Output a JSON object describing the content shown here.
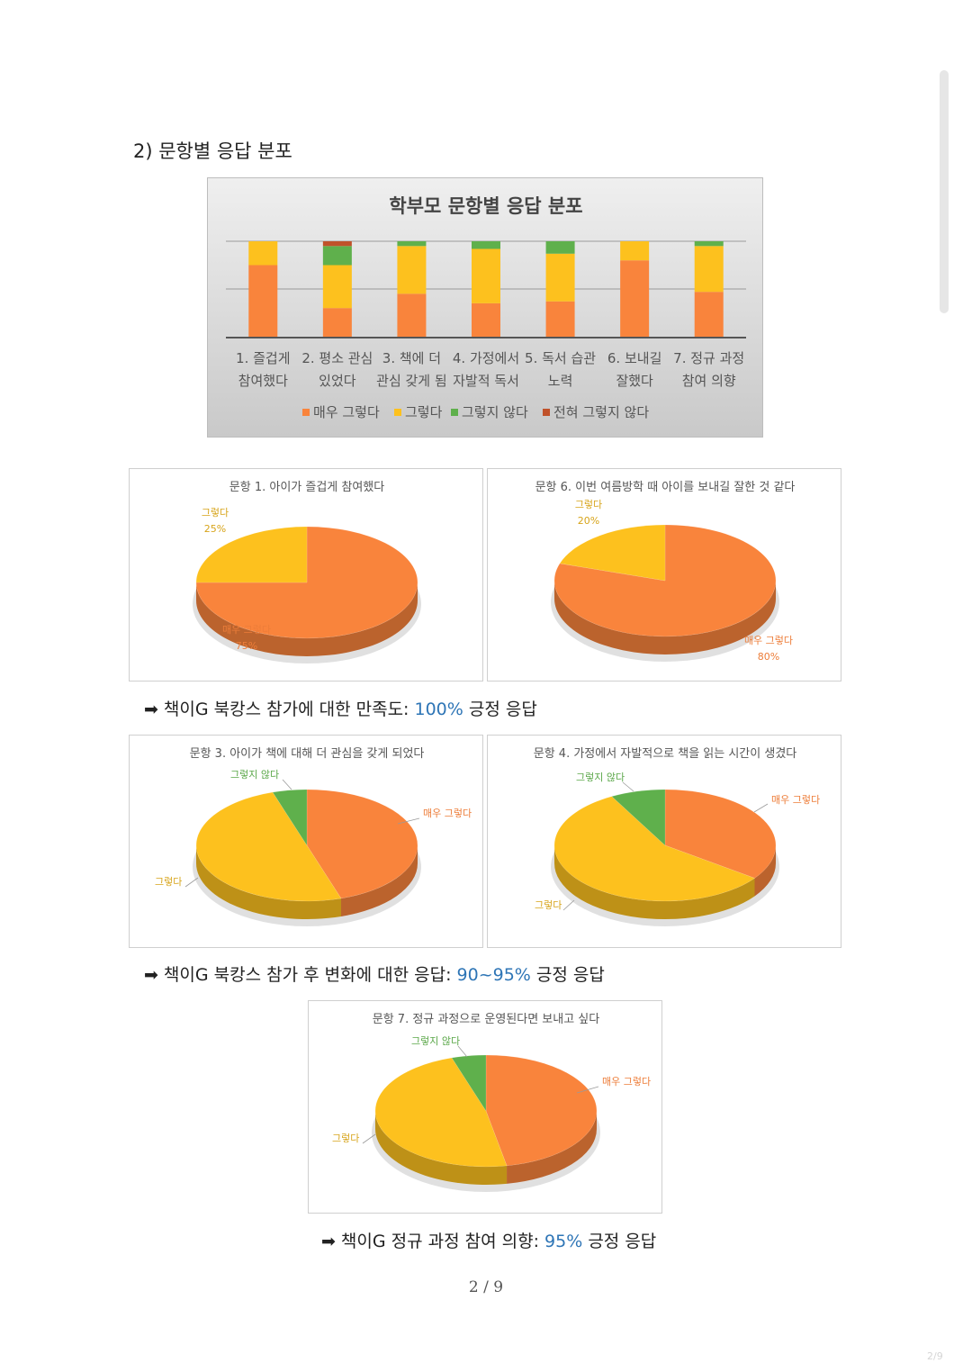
{
  "section_title": "2) 문항별 응답 분포",
  "page_number": "2 / 9",
  "corner_text": "2/9",
  "colors": {
    "매우 그렇다": "#f9843c",
    "그렇다": "#fdc11e",
    "그렇지 않다": "#5fb04c",
    "전혀 그렇지 않다": "#c0522a",
    "highlight": "#2e75b6"
  },
  "summaries": [
    {
      "prefix": "책이G 북캉스 참가에 대한 만족도: ",
      "value": "100%",
      "suffix": " 긍정 응답"
    },
    {
      "prefix": "책이G 북캉스 참가 후 변화에 대한 응답: ",
      "value": "90~95%",
      "suffix": " 긍정 응답"
    },
    {
      "prefix": "책이G 정규 과정 참여 의향: ",
      "value": "95%",
      "suffix": " 긍정 응답"
    }
  ],
  "chart_data": [
    {
      "type": "bar",
      "stacked": true,
      "title": "학부모 문항별 응답 분포",
      "categories": [
        [
          "1. 즐겁게",
          "참여했다"
        ],
        [
          "2. 평소 관심",
          "있었다"
        ],
        [
          "3. 책에 더",
          "관심 갖게 됨"
        ],
        [
          "4. 가정에서",
          "자발적 독서"
        ],
        [
          "5. 독서 습관",
          "노력"
        ],
        [
          "6. 보내길",
          "잘했다"
        ],
        [
          "7. 정규 과정",
          "참여 의향"
        ]
      ],
      "series": [
        {
          "name": "매우 그렇다",
          "values": [
            75,
            30,
            45,
            35,
            37,
            80,
            47
          ]
        },
        {
          "name": "그렇다",
          "values": [
            25,
            45,
            50,
            57,
            50,
            20,
            48
          ]
        },
        {
          "name": "그렇지 않다",
          "values": [
            0,
            20,
            5,
            8,
            13,
            0,
            5
          ]
        },
        {
          "name": "전혀 그렇지 않다",
          "values": [
            0,
            5,
            0,
            0,
            0,
            0,
            0
          ]
        }
      ],
      "ylim": [
        0,
        100
      ],
      "grid": true,
      "legend": "bottom"
    },
    {
      "type": "pie",
      "title": "문항 1. 아이가 즐겁게 참여했다",
      "slices": [
        {
          "label": "매우 그렇다",
          "value": 75,
          "value_label": "75%"
        },
        {
          "label": "그렇다",
          "value": 25,
          "value_label": "25%"
        }
      ]
    },
    {
      "type": "pie",
      "title": "문항 6. 이번 여름방학 때 아이를 보내길 잘한 것 같다",
      "slices": [
        {
          "label": "매우 그렇다",
          "value": 80,
          "value_label": "80%"
        },
        {
          "label": "그렇다",
          "value": 20,
          "value_label": "20%"
        }
      ]
    },
    {
      "type": "pie",
      "title": "문항 3. 아이가 책에 대해 더 관심을 갖게 되었다",
      "slices": [
        {
          "label": "매우 그렇다",
          "value": 45
        },
        {
          "label": "그렇다",
          "value": 50
        },
        {
          "label": "그렇지 않다",
          "value": 5
        }
      ]
    },
    {
      "type": "pie",
      "title": "문항 4. 가정에서 자발적으로 책을 읽는 시간이 생겼다",
      "slices": [
        {
          "label": "매우 그렇다",
          "value": 35
        },
        {
          "label": "그렇다",
          "value": 57
        },
        {
          "label": "그렇지 않다",
          "value": 8
        }
      ]
    },
    {
      "type": "pie",
      "title": "문항 7. 정규 과정으로 운영된다면 보내고 싶다",
      "slices": [
        {
          "label": "매우 그렇다",
          "value": 47
        },
        {
          "label": "그렇다",
          "value": 48
        },
        {
          "label": "그렇지 않다",
          "value": 5
        }
      ]
    }
  ]
}
